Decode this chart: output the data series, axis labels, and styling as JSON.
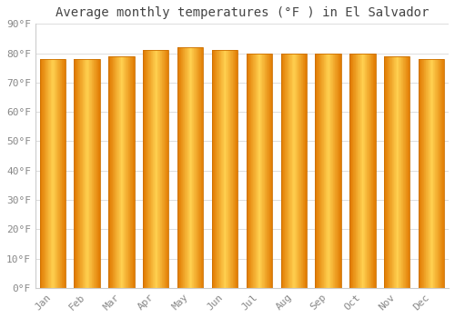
{
  "title": "Average monthly temperatures (°F ) in El Salvador",
  "months": [
    "Jan",
    "Feb",
    "Mar",
    "Apr",
    "May",
    "Jun",
    "Jul",
    "Aug",
    "Sep",
    "Oct",
    "Nov",
    "Dec"
  ],
  "values": [
    78,
    78,
    79,
    81,
    82,
    81,
    80,
    80,
    80,
    80,
    79,
    78
  ],
  "ylim": [
    0,
    90
  ],
  "yticks": [
    0,
    10,
    20,
    30,
    40,
    50,
    60,
    70,
    80,
    90
  ],
  "ytick_labels": [
    "0°F",
    "10°F",
    "20°F",
    "30°F",
    "40°F",
    "50°F",
    "60°F",
    "70°F",
    "80°F",
    "90°F"
  ],
  "bar_color_left": "#E07800",
  "bar_color_center": "#FFD050",
  "bar_color_right": "#E07800",
  "bar_edge_color": "#CC7000",
  "background_color": "#FFFFFF",
  "grid_color": "#DDDDDD",
  "title_fontsize": 10,
  "tick_fontsize": 8,
  "title_color": "#444444",
  "tick_color": "#888888",
  "bar_width": 0.75,
  "n_slices": 40
}
